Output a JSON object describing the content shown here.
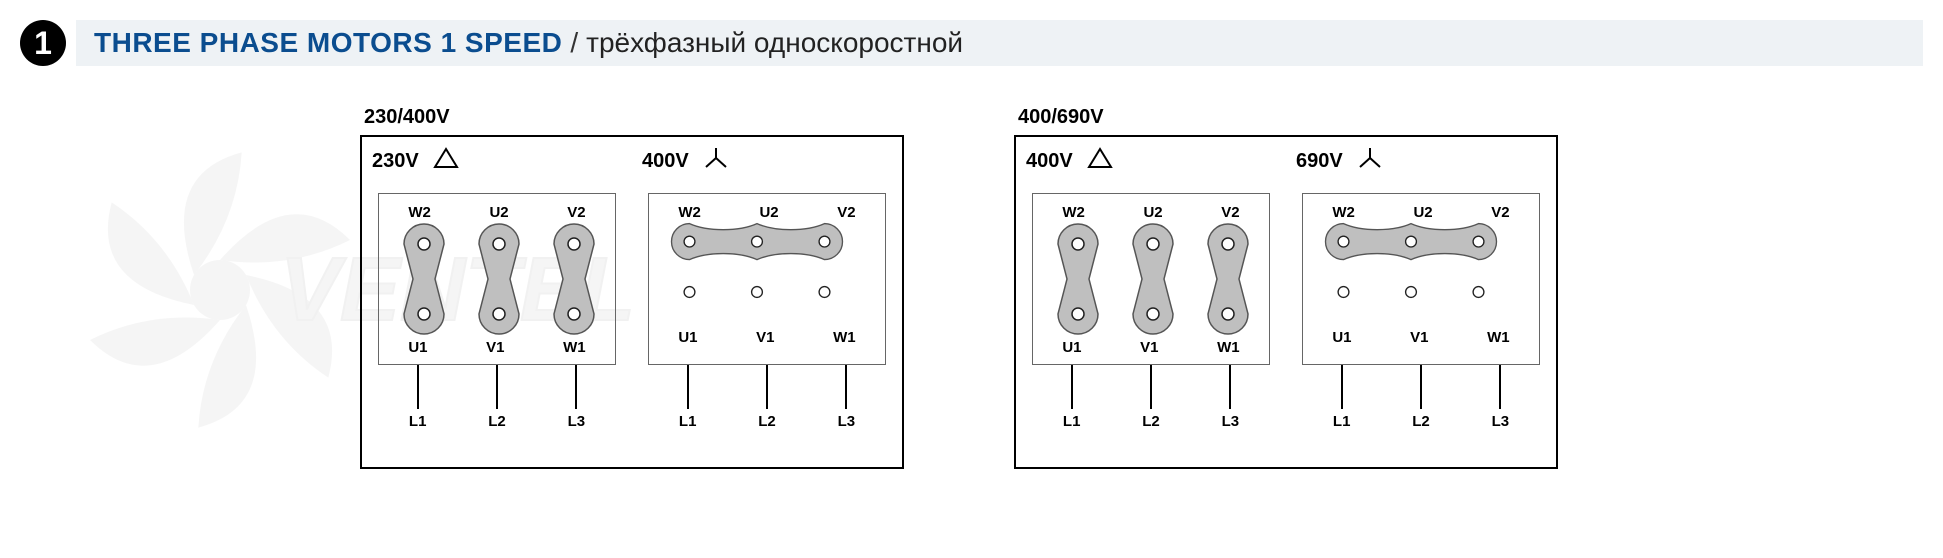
{
  "header": {
    "num": "1",
    "title_en": "THREE PHASE MOTORS 1 SPEED",
    "title_ru": "трёхфазный односкоростной",
    "bar_bg": "#eef2f5",
    "title_color": "#0b4d8f"
  },
  "terminals": {
    "top_labels": [
      "W2",
      "U2",
      "V2"
    ],
    "bot_labels": [
      "U1",
      "V1",
      "W1"
    ],
    "line_labels": [
      "L1",
      "L2",
      "L3"
    ],
    "fill": "#bfbfbf",
    "stroke": "#555555",
    "dot_stroke": "#222222"
  },
  "groups": [
    {
      "title": "230/400V",
      "panels": [
        {
          "voltage": "230V",
          "conn": "delta"
        },
        {
          "voltage": "400V",
          "conn": "star"
        }
      ]
    },
    {
      "title": "400/690V",
      "panels": [
        {
          "voltage": "400V",
          "conn": "delta"
        },
        {
          "voltage": "690V",
          "conn": "star"
        }
      ]
    }
  ],
  "style": {
    "font_family": "Arial, Helvetica, sans-serif",
    "border_color": "#000000",
    "inner_border": "#666666",
    "label_fontsize": 15,
    "title_fontsize": 28,
    "group_title_fontsize": 20
  }
}
